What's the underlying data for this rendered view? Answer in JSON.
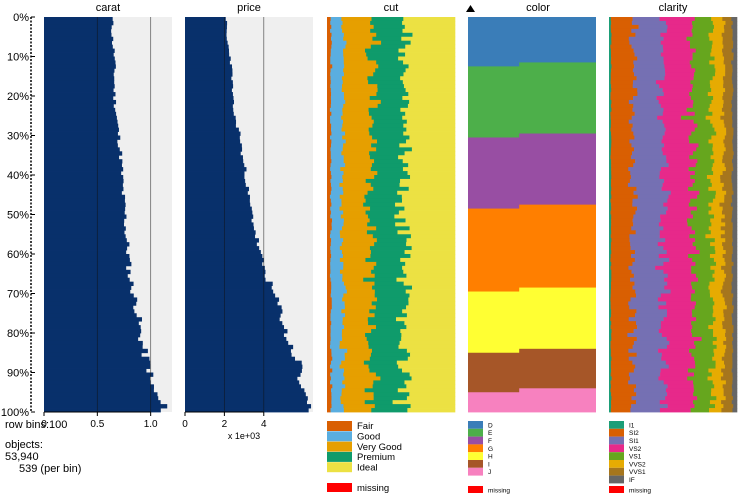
{
  "chart_data": {
    "type": "tableplot",
    "row_axis": {
      "ticks": [
        "0%",
        "10%",
        "20%",
        "30%",
        "40%",
        "50%",
        "60%",
        "70%",
        "80%",
        "90%",
        "100%"
      ]
    },
    "columns": [
      {
        "name": "carat",
        "kind": "numeric",
        "xlim": [
          0,
          1.2
        ],
        "tick_labels": [
          "0",
          "0.5",
          "1.0"
        ],
        "tick_values": [
          0,
          0.5,
          1.0
        ],
        "scale_label": ""
      },
      {
        "name": "price",
        "kind": "numeric",
        "xlim": [
          0,
          6.5
        ],
        "tick_labels": [
          "0",
          "2",
          "4"
        ],
        "tick_values": [
          0,
          2,
          4
        ],
        "scale_label": "x 1e+03"
      },
      {
        "name": "cut",
        "kind": "categorical",
        "sorted": false
      },
      {
        "name": "color",
        "kind": "categorical",
        "sorted": true
      },
      {
        "name": "clarity",
        "kind": "categorical",
        "sorted": false
      }
    ],
    "carat_profile": {
      "pct": [
        0,
        5,
        10,
        15,
        20,
        25,
        30,
        35,
        40,
        45,
        50,
        55,
        60,
        65,
        70,
        75,
        80,
        85,
        88,
        90,
        92,
        94,
        96,
        98,
        100
      ],
      "value": [
        0.64,
        0.64,
        0.66,
        0.66,
        0.66,
        0.68,
        0.7,
        0.72,
        0.73,
        0.74,
        0.76,
        0.77,
        0.79,
        0.8,
        0.84,
        0.88,
        0.9,
        0.94,
        0.98,
        1.0,
        0.98,
        1.03,
        1.05,
        1.1,
        1.15
      ]
    },
    "price_profile": {
      "pct": [
        0,
        5,
        10,
        15,
        20,
        25,
        30,
        35,
        40,
        45,
        50,
        55,
        60,
        65,
        70,
        75,
        80,
        85,
        88,
        90,
        92,
        94,
        96,
        98,
        100
      ],
      "value": [
        2.1,
        2.1,
        2.3,
        2.4,
        2.4,
        2.5,
        2.8,
        2.9,
        3.1,
        3.2,
        3.4,
        3.6,
        3.8,
        4.1,
        4.5,
        4.9,
        5.1,
        5.5,
        5.8,
        6.0,
        5.7,
        6.1,
        5.9,
        6.2,
        6.0
      ]
    },
    "cut": {
      "categories": [
        "Fair",
        "Good",
        "Very Good",
        "Premium",
        "Ideal"
      ],
      "colors": [
        "#d95f02",
        "#5aaee0",
        "#e69f00",
        "#0f9b6b",
        "#ece143"
      ],
      "fractions": [
        0.03,
        0.09,
        0.22,
        0.26,
        0.4
      ]
    },
    "color": {
      "categories": [
        "D",
        "E",
        "F",
        "G",
        "H",
        "I",
        "J"
      ],
      "colors": [
        "#3a7db8",
        "#4daf4a",
        "#984ea3",
        "#ff7f00",
        "#ffff33",
        "#a65628",
        "#f781bf"
      ],
      "band_bounds_pct": [
        0,
        12.5,
        30.5,
        48.5,
        69.5,
        85,
        95,
        100
      ]
    },
    "clarity": {
      "categories": [
        "I1",
        "SI2",
        "SI1",
        "VS2",
        "VS1",
        "VVS2",
        "VVS1",
        "IF"
      ],
      "colors": [
        "#1b9e77",
        "#d95f02",
        "#7570b3",
        "#e7298a",
        "#66a61e",
        "#e6ab02",
        "#a6761d",
        "#666666"
      ],
      "fractions": [
        0.015,
        0.17,
        0.24,
        0.23,
        0.15,
        0.09,
        0.07,
        0.035
      ]
    },
    "missing_label": "missing",
    "missing_color": "#ff0000"
  },
  "info": {
    "row_bins_label": "row bins:",
    "row_bins_value": "100",
    "objects_label": "objects:",
    "objects_value": "53,940",
    "per_bin": "539 (per bin)"
  }
}
